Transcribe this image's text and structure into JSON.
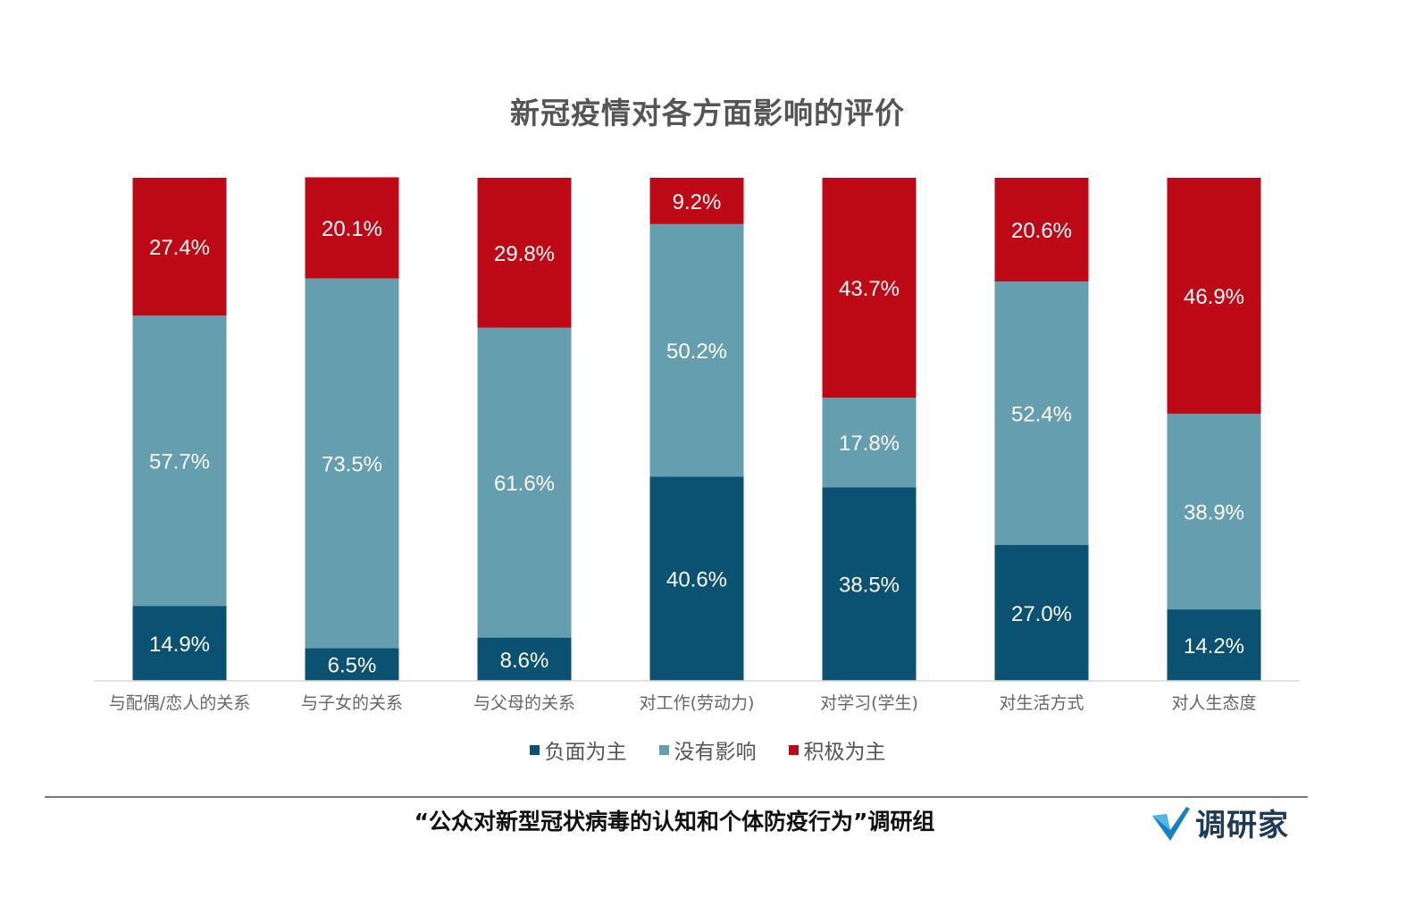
{
  "chart_data": {
    "type": "bar",
    "stacked": true,
    "title": "新冠疫情对各方面影响的评价",
    "categories": [
      "与配偶/恋人的关系",
      "与子女的关系",
      "与父母的关系",
      "对工作(劳动力)",
      "对学习(学生)",
      "对生活方式",
      "对人生态度"
    ],
    "series": [
      {
        "name": "负面为主",
        "color": "#0b5171",
        "values": [
          14.9,
          6.5,
          8.6,
          40.6,
          38.5,
          27.0,
          14.2
        ]
      },
      {
        "name": "没有影响",
        "color": "#649eaf",
        "values": [
          57.7,
          73.5,
          61.6,
          50.2,
          17.8,
          52.4,
          38.9
        ]
      },
      {
        "name": "积极为主",
        "color": "#bd0815",
        "values": [
          27.4,
          20.1,
          29.8,
          9.2,
          43.7,
          20.6,
          46.9
        ]
      }
    ],
    "value_suffix": "%",
    "ylim": [
      0,
      100
    ],
    "grid": false,
    "legend_position": "bottom"
  },
  "footer": {
    "source": "“公众对新型冠状病毒的认知和个体防疫行为”调研组"
  },
  "logo": {
    "text": "调研家",
    "icon": "checkmark-logo-icon"
  }
}
